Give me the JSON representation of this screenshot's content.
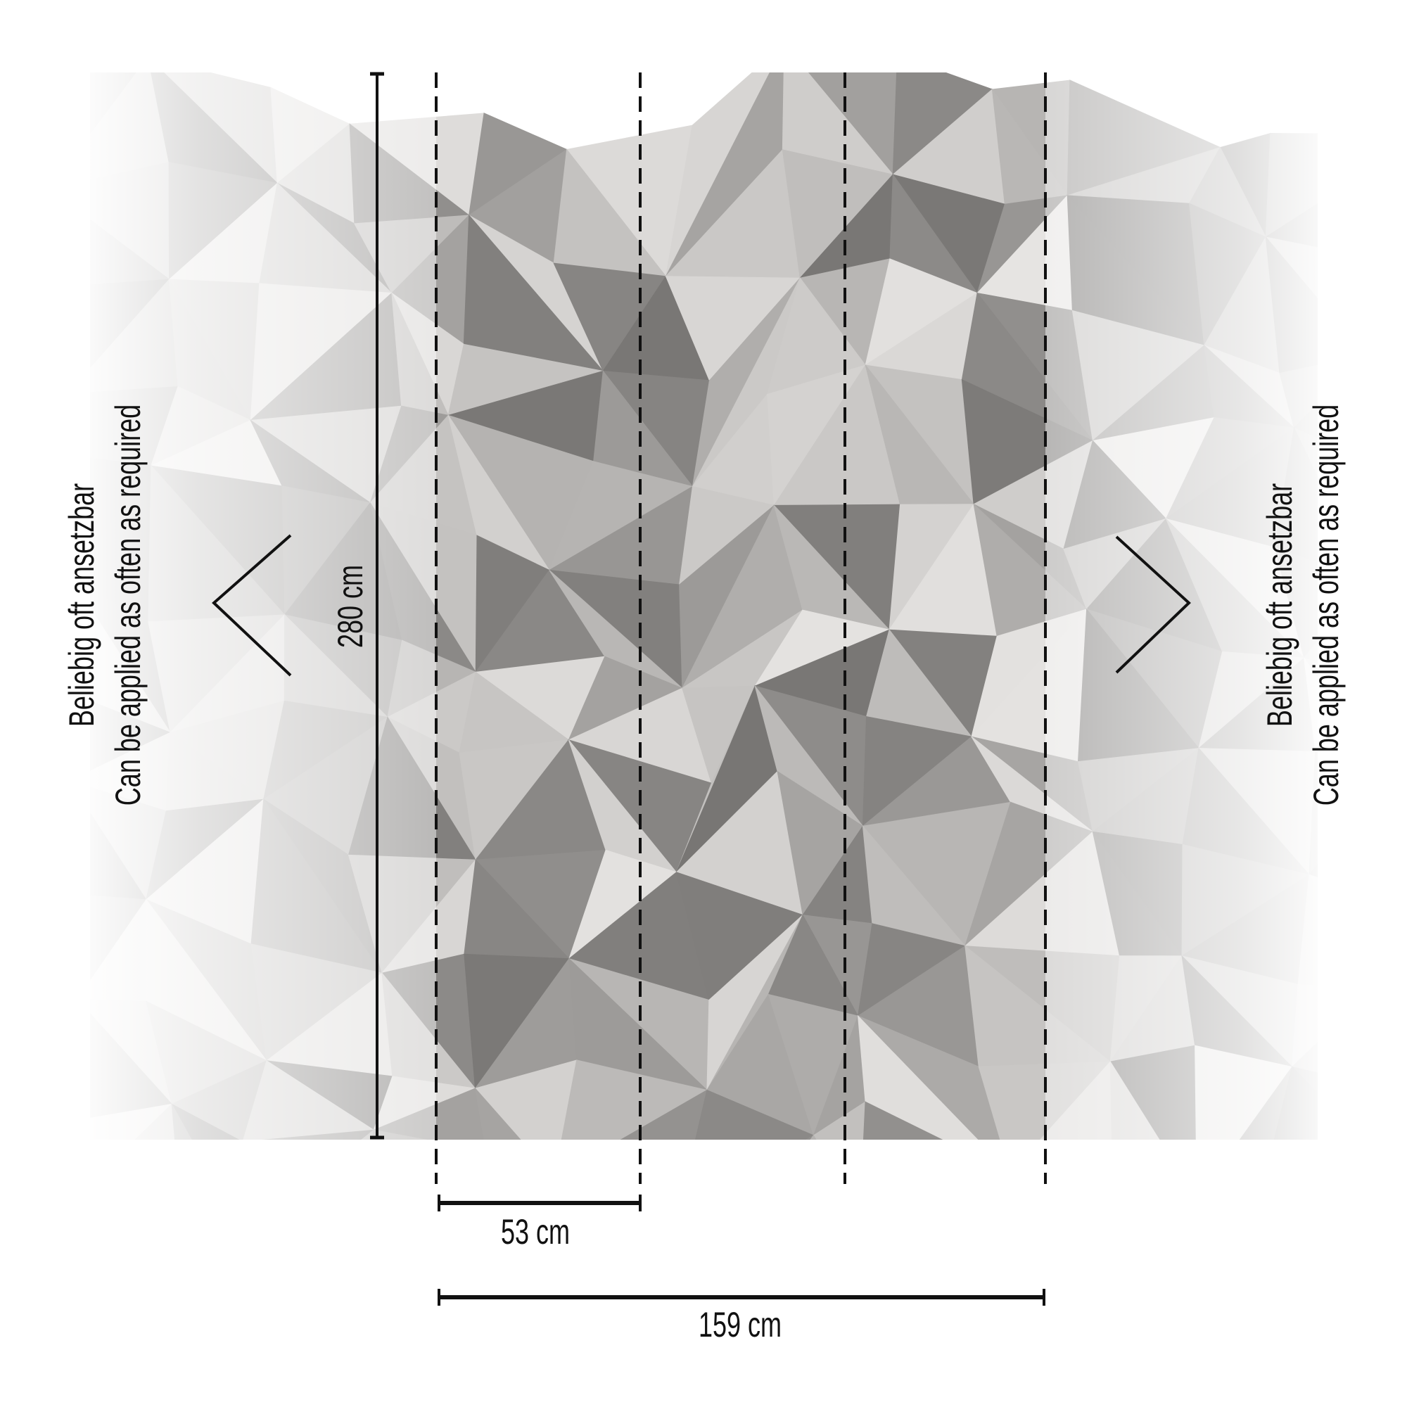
{
  "mural": {
    "height_label": "280 cm",
    "panel_width_label": "53 cm",
    "total_width_label": "159 cm",
    "panel_count": 3
  },
  "repeat_note_left": {
    "line1": "Beliebig oft ansetzbar",
    "line2": "Can be applied as often as required"
  },
  "repeat_note_right": {
    "line1": "Beliebig oft ansetzbar",
    "line2": "Can be applied as often as required"
  },
  "colors": {
    "line": "#111111",
    "concrete_dark": "#7a7876",
    "concrete_light": "#e4e3e1"
  }
}
